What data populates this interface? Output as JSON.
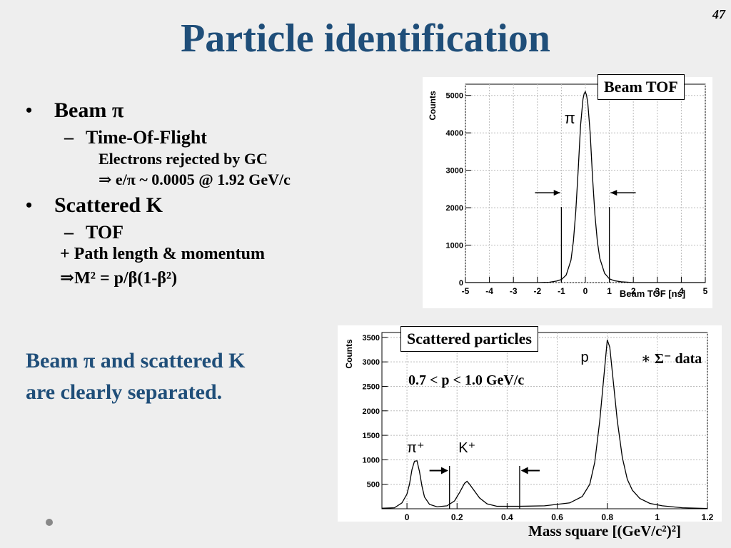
{
  "slide_number": "47",
  "title": "Particle identification",
  "bullets": {
    "beam_pi": "Beam π",
    "tof_flight": "Time-Of-Flight",
    "electrons_rejected": "Electrons rejected by GC",
    "e_pi_ratio": "⇒ e/π ~ 0.0005 @ 1.92 GeV/c",
    "scattered_k": "Scattered K",
    "tof": "TOF",
    "path_length": "+ Path length & momentum",
    "mass_formula": "⇒M² = p/β(1-β²)"
  },
  "summary": {
    "line1": "Beam π and scattered K",
    "line2": "are clearly separated."
  },
  "chart_data": [
    {
      "type": "line",
      "label_box": "Beam TOF",
      "xlabel": "Beam TOF [ns]",
      "ylabel": "Counts",
      "xlim": [
        -5,
        5
      ],
      "ylim": [
        0,
        5300
      ],
      "xticks": [
        -5,
        -4,
        -3,
        -2,
        -1,
        0,
        1,
        2,
        3,
        4,
        5
      ],
      "yticks": [
        0,
        1000,
        2000,
        3000,
        4000,
        5000
      ],
      "grid": true,
      "peak_label": "π",
      "cut_lines": [
        -1.0,
        1.0
      ],
      "series": [
        {
          "x": [
            -5,
            -2,
            -1.5,
            -1.2,
            -1.0,
            -0.8,
            -0.6,
            -0.5,
            -0.4,
            -0.3,
            -0.2,
            -0.1,
            -0.05,
            0,
            0.05,
            0.1,
            0.2,
            0.3,
            0.4,
            0.5,
            0.6,
            0.8,
            1.0,
            1.2,
            1.5,
            2,
            5
          ],
          "values": [
            0,
            0,
            10,
            40,
            80,
            200,
            600,
            1100,
            1900,
            3000,
            4200,
            4900,
            5050,
            5100,
            5000,
            4800,
            4000,
            2800,
            1800,
            1100,
            650,
            250,
            100,
            50,
            20,
            0,
            0
          ]
        }
      ]
    },
    {
      "type": "line",
      "label_box": "Scattered particles",
      "annotation": "0.7 < p < 1.0 GeV/c",
      "legend": "∗ Σ⁻ data",
      "legend_position": "top-right",
      "xlabel": "Mass square [(GeV/c²)²]",
      "ylabel": "Counts",
      "xlim": [
        -0.1,
        1.2
      ],
      "ylim": [
        0,
        3600
      ],
      "xticks": [
        0,
        0.2,
        0.4,
        0.6,
        0.8,
        1,
        1.2
      ],
      "yticks": [
        500,
        1000,
        1500,
        2000,
        2500,
        3000,
        3500
      ],
      "grid": true,
      "peak_labels": [
        {
          "text": "π⁺",
          "x": 0.035,
          "y": 1150
        },
        {
          "text": "K⁺",
          "x": 0.24,
          "y": 1150
        },
        {
          "text": "p",
          "x": 0.71,
          "y": 3000
        }
      ],
      "cut_lines": [
        0.17,
        0.45
      ],
      "series": [
        {
          "x": [
            -0.1,
            -0.05,
            -0.02,
            0,
            0.01,
            0.02,
            0.03,
            0.04,
            0.05,
            0.06,
            0.07,
            0.09,
            0.12,
            0.16,
            0.19,
            0.21,
            0.23,
            0.24,
            0.25,
            0.27,
            0.29,
            0.32,
            0.36,
            0.45,
            0.55,
            0.65,
            0.7,
            0.73,
            0.75,
            0.77,
            0.79,
            0.8,
            0.81,
            0.82,
            0.84,
            0.86,
            0.88,
            0.9,
            0.93,
            0.97,
            1.02,
            1.1,
            1.2
          ],
          "values": [
            10,
            20,
            120,
            300,
            500,
            800,
            970,
            980,
            760,
            460,
            240,
            90,
            40,
            60,
            160,
            330,
            520,
            560,
            500,
            360,
            220,
            100,
            50,
            50,
            60,
            120,
            250,
            500,
            950,
            1800,
            2900,
            3450,
            3300,
            2800,
            1800,
            1050,
            600,
            380,
            210,
            110,
            60,
            20,
            5
          ]
        }
      ]
    }
  ]
}
